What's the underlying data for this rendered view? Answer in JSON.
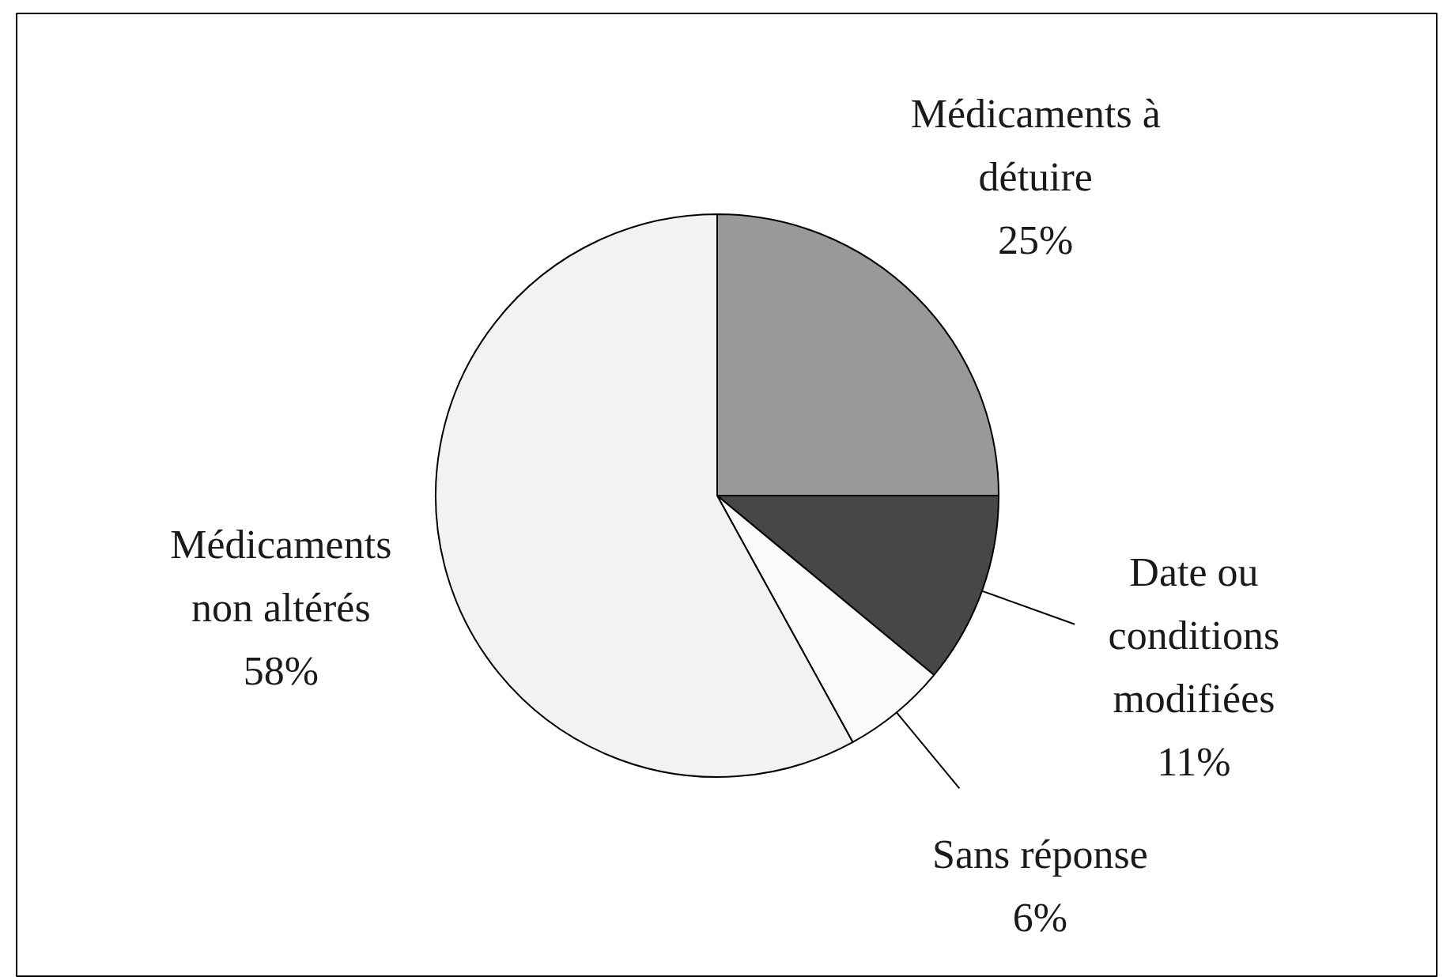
{
  "chart_data": {
    "type": "pie",
    "categories": [
      "Médicaments à détuire",
      "Date ou conditions modifiées",
      "Sans réponse",
      "Médicaments non altérés"
    ],
    "values": [
      25,
      11,
      6,
      58
    ],
    "colors": [
      "#999999",
      "#474747",
      "#fafafa",
      "#f2f2f2"
    ],
    "value_labels": [
      "25%",
      "11%",
      "6%",
      "58%"
    ]
  }
}
